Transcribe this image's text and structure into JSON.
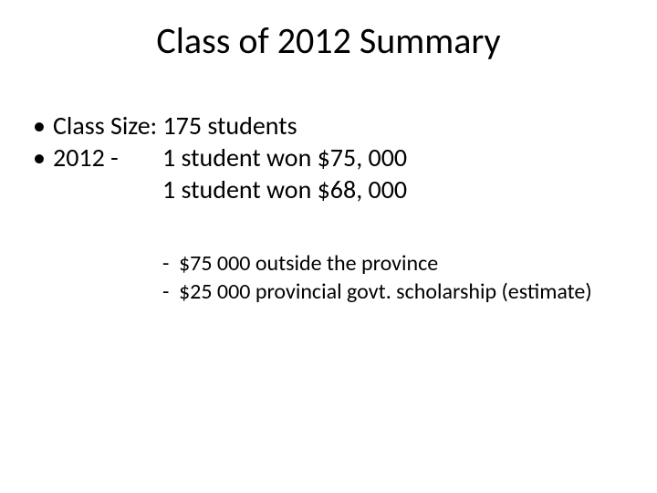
{
  "slide": {
    "title": "Class of 2012 Summary",
    "bullet1": "Class Size: 175 students",
    "bullet2_prefix": "2012 -",
    "bullet2_line1": "1 student won $75, 000",
    "bullet2_line2": "1 student won $68, 000",
    "sub1": "$75 000 outside the province",
    "sub2": "$25 000 provincial govt. scholarship (estimate)"
  },
  "style": {
    "background_color": "#ffffff",
    "text_color": "#000000",
    "title_fontsize": 40,
    "body_fontsize": 28,
    "sub_fontsize": 24,
    "font_family": "Calibri"
  }
}
